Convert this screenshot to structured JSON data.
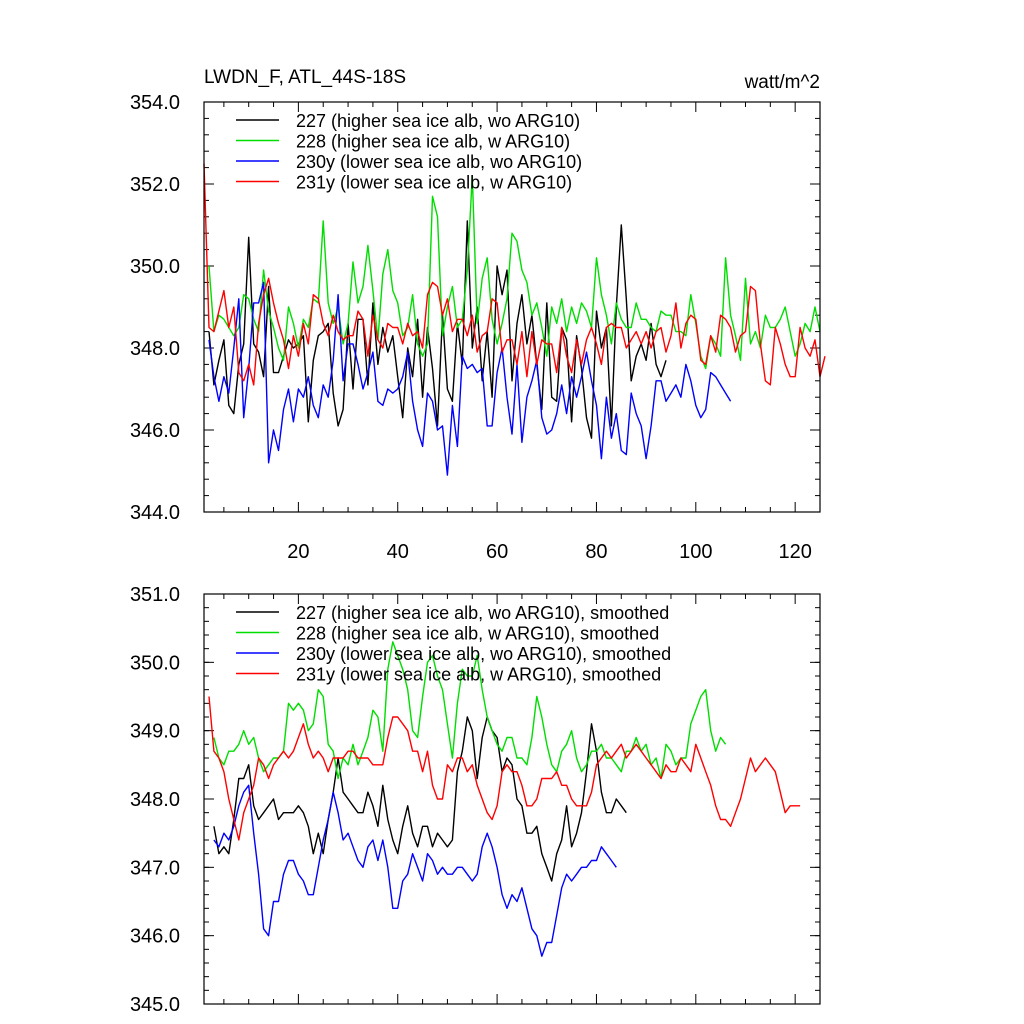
{
  "chart_data": [
    {
      "type": "line",
      "title": "LWDN_F, ATL_44S-18S",
      "units": "watt/m^2",
      "xlim": [
        1,
        125
      ],
      "ylim": [
        344,
        354
      ],
      "yticks": [
        "344.0",
        "346.0",
        "348.0",
        "350.0",
        "352.0",
        "354.0"
      ],
      "xticks": [
        "20",
        "40",
        "60",
        "80",
        "100",
        "120"
      ],
      "series": [
        {
          "name": "227 (higher sea ice alb, wo ARG10)",
          "color": "#000000",
          "x_start": 2,
          "values": [
            348.4,
            347.1,
            347.7,
            348.2,
            346.6,
            346.4,
            347.6,
            348.1,
            350.7,
            348.1,
            347.9,
            347.3,
            349.5,
            347.4,
            347.4,
            347.8,
            348.2,
            348.0,
            348.1,
            348.3,
            346.2,
            347.7,
            348.3,
            348.4,
            348.6,
            346.9,
            346.1,
            346.5,
            348.6,
            347.0,
            348.7,
            348.7,
            347.1,
            349.1,
            347.6,
            348.5,
            347.9,
            348.3,
            347.3,
            346.3,
            348.0,
            347.3,
            348.7,
            346.8,
            348.5,
            347.5,
            346.1,
            348.8,
            347.0,
            346.7,
            348.6,
            347.6,
            351.1,
            348.0,
            349.0,
            347.2,
            348.4,
            346.8,
            350.0,
            349.3,
            349.9,
            347.2,
            348.6,
            349.3,
            348.1,
            348.8,
            347.6,
            346.5,
            349.1,
            346.8,
            346.7,
            348.5,
            348.2,
            346.2,
            348.3,
            347.5,
            346.3,
            345.8,
            348.9,
            348.0,
            348.5,
            346.1,
            349.0,
            351.0,
            349.2,
            347.2,
            347.8,
            348.1,
            347.7,
            348.6,
            347.6,
            347.3,
            347.7
          ]
        },
        {
          "name": "228 (higher sea ice alb, w ARG10)",
          "color": "#00dd00",
          "x_start": 2,
          "values": [
            350.0,
            348.4,
            348.8,
            348.7,
            348.5,
            348.3,
            348.5,
            349.3,
            349.2,
            348.7,
            348.4,
            349.9,
            348.9,
            348.5,
            348.0,
            347.7,
            349.0,
            348.6,
            348.0,
            348.7,
            348.5,
            349.2,
            349.1,
            351.1,
            349.1,
            348.6,
            349.0,
            348.1,
            348.6,
            350.1,
            349.1,
            349.5,
            350.5,
            349.4,
            348.2,
            349.8,
            350.4,
            349.4,
            349.1,
            348.3,
            348.5,
            349.3,
            348.1,
            347.8,
            348.1,
            351.7,
            351.2,
            348.3,
            349.0,
            349.5,
            348.5,
            348.7,
            349.9,
            352.2,
            348.6,
            349.7,
            350.2,
            348.7,
            348.1,
            348.6,
            349.2,
            350.8,
            350.6,
            349.9,
            349.6,
            348.8,
            349.1,
            348.5,
            347.8,
            349.0,
            348.6,
            349.2,
            348.4,
            349.0,
            348.6,
            349.1,
            348.9,
            348.5,
            350.2,
            349.3,
            348.8,
            348.1,
            349.1,
            348.7,
            348.5,
            348.5,
            349.1,
            348.7,
            348.7,
            348.5,
            348.4,
            348.9,
            348.8,
            348.8,
            348.4,
            348.4,
            348.3,
            349.3,
            348.6,
            347.8,
            347.5,
            348.3,
            348.1,
            347.8,
            350.2,
            348.8,
            348.3,
            347.7,
            349.7,
            348.1,
            348.4,
            348.0,
            348.8,
            348.5,
            348.5,
            348.7,
            349.0,
            348.4,
            347.8,
            348.1,
            348.6,
            348.4,
            349.0,
            348.4
          ]
        },
        {
          "name": "230y (lower sea ice alb, wo ARG10)",
          "color": "#0000ff",
          "x_start": 2,
          "values": [
            348.2,
            347.3,
            346.7,
            347.3,
            346.9,
            348.0,
            349.2,
            346.3,
            347.5,
            349.1,
            349.1,
            349.6,
            345.2,
            346.0,
            345.5,
            346.5,
            347.0,
            346.2,
            347.0,
            346.8,
            347.3,
            346.6,
            346.3,
            347.1,
            346.8,
            347.7,
            349.3,
            347.2,
            348.1,
            348.1,
            347.6,
            347.0,
            347.4,
            347.9,
            346.7,
            346.6,
            347.0,
            346.9,
            347.0,
            347.3,
            347.9,
            346.7,
            346.0,
            345.6,
            346.9,
            346.7,
            346.0,
            346.1,
            344.9,
            346.6,
            345.6,
            347.8,
            347.5,
            347.6,
            347.4,
            347.5,
            346.1,
            346.1,
            347.4,
            348.0,
            346.8,
            345.9,
            347.6,
            345.7,
            346.8,
            347.2,
            347.7,
            346.3,
            345.9,
            346.0,
            346.4,
            347.1,
            346.4,
            347.3,
            346.8,
            347.3,
            347.9,
            347.2,
            346.6,
            345.3,
            346.8,
            345.8,
            346.4,
            345.5,
            345.4,
            346.9,
            346.4,
            346.1,
            345.3,
            346.1,
            347.2,
            347.2,
            346.7,
            346.9,
            347.1,
            346.8,
            347.6,
            347.2,
            346.6,
            346.3,
            346.5,
            347.4,
            347.3,
            347.1,
            346.9,
            346.7
          ]
        },
        {
          "name": "231y (lower sea ice alb, w ARG10)",
          "color": "#ff0000",
          "x_start": 1,
          "values": [
            352.5,
            348.5,
            348.4,
            348.9,
            349.4,
            348.5,
            349.0,
            347.4,
            347.2,
            347.6,
            347.1,
            348.6,
            349.3,
            349.7,
            349.1,
            348.6,
            348.2,
            347.5,
            348.3,
            347.8,
            348.6,
            348.1,
            349.3,
            349.2,
            348.6,
            348.3,
            348.8,
            348.4,
            348.2,
            348.3,
            348.3,
            348.9,
            348.7,
            347.8,
            348.8,
            348.2,
            348.0,
            348.6,
            348.5,
            348.5,
            348.1,
            348.6,
            348.3,
            348.4,
            348.0,
            349.3,
            349.6,
            349.5,
            348.8,
            349.2,
            348.4,
            348.7,
            348.7,
            348.3,
            348.8,
            347.9,
            348.3,
            348.4,
            349.2,
            349.1,
            347.9,
            348.2,
            348.2,
            347.6,
            348.4,
            347.3,
            348.4,
            347.6,
            348.2,
            348.1,
            348.1,
            347.4,
            348.5,
            347.8,
            347.4,
            348.2,
            347.6,
            348.2,
            348.5,
            348.1,
            347.6,
            348.5,
            348.6,
            348.5,
            348.5,
            348.0,
            348.2,
            348.4,
            348.1,
            348.4,
            348.0,
            348.4,
            348.5,
            347.9,
            348.3,
            349.1,
            348.0,
            348.6,
            348.8,
            348.7,
            347.7,
            347.6,
            348.3,
            347.9,
            348.8,
            348.7,
            348.5,
            347.9,
            348.3,
            348.4,
            349.5,
            349.4,
            348.1,
            347.2,
            347.1,
            348.5,
            348.1,
            347.6,
            347.3,
            347.3,
            348.5,
            348.0,
            347.8,
            348.2,
            347.3,
            347.8
          ]
        }
      ]
    },
    {
      "type": "line",
      "ylim": [
        345,
        351
      ],
      "xlim": [
        1,
        125
      ],
      "yticks": [
        "345.0",
        "346.0",
        "347.0",
        "348.0",
        "349.0",
        "350.0",
        "351.0"
      ],
      "series": [
        {
          "name": "227 (higher sea ice alb, wo ARG10), smoothed",
          "color": "#000000",
          "x_start": 3,
          "values": [
            347.6,
            347.2,
            347.3,
            347.2,
            347.7,
            348.3,
            348.3,
            348.5,
            347.9,
            347.7,
            347.8,
            347.9,
            348.0,
            347.7,
            347.8,
            347.8,
            347.8,
            347.9,
            347.8,
            347.6,
            347.2,
            347.5,
            347.2,
            347.7,
            348.1,
            348.6,
            348.1,
            348.0,
            347.9,
            347.8,
            347.8,
            348.1,
            347.9,
            347.6,
            348.2,
            347.7,
            347.4,
            347.2,
            347.6,
            347.9,
            347.5,
            347.3,
            347.6,
            347.6,
            347.3,
            347.5,
            347.4,
            347.3,
            347.4,
            348.4,
            348.7,
            349.2,
            349.0,
            348.3,
            348.9,
            349.2,
            349.0,
            348.9,
            348.4,
            348.6,
            348.5,
            348.0,
            347.9,
            347.5,
            347.5,
            347.6,
            347.2,
            347.0,
            346.8,
            347.2,
            347.4,
            347.9,
            347.3,
            347.5,
            347.8,
            348.4,
            349.1,
            348.7,
            348.1,
            347.8,
            347.8,
            348.0,
            347.9,
            347.8
          ]
        },
        {
          "name": "228 (higher sea ice alb, w ARG10), smoothed",
          "color": "#00dd00",
          "x_start": 3,
          "values": [
            348.9,
            348.6,
            348.5,
            348.7,
            348.7,
            348.8,
            349.0,
            348.8,
            348.9,
            348.6,
            348.4,
            348.5,
            348.6,
            348.6,
            348.7,
            349.4,
            349.3,
            349.4,
            349.3,
            349.0,
            349.1,
            349.6,
            349.5,
            348.8,
            348.7,
            348.3,
            348.6,
            348.5,
            348.8,
            348.5,
            348.7,
            348.9,
            349.3,
            349.2,
            348.7,
            349.9,
            350.3,
            350.1,
            349.9,
            349.6,
            349.0,
            348.9,
            349.5,
            350.0,
            350.1,
            349.8,
            349.6,
            349.1,
            348.6,
            349.4,
            349.9,
            349.8,
            349.8,
            350.1,
            349.6,
            349.2,
            349.0,
            348.8,
            348.7,
            348.9,
            348.9,
            348.6,
            348.6,
            348.5,
            348.9,
            349.5,
            349.2,
            348.8,
            348.5,
            348.4,
            348.7,
            348.8,
            349.0,
            348.6,
            348.4,
            348.5,
            348.7,
            348.7,
            348.8,
            348.6,
            348.6,
            348.5,
            348.4,
            348.7,
            348.7,
            348.9,
            348.7,
            348.8,
            348.5,
            348.6,
            348.3,
            348.8,
            348.7,
            348.5,
            348.6,
            348.6,
            349.1,
            349.3,
            349.5,
            349.6,
            349.0,
            348.7,
            348.9,
            348.8
          ]
        },
        {
          "name": "230y (lower sea ice alb, wo ARG10), smoothed",
          "color": "#0000ff",
          "x_start": 3,
          "values": [
            347.4,
            347.3,
            347.5,
            347.4,
            347.6,
            347.9,
            348.1,
            348.2,
            347.5,
            346.9,
            346.1,
            346.0,
            346.5,
            346.5,
            346.9,
            347.1,
            347.1,
            346.9,
            346.8,
            346.6,
            346.6,
            347.0,
            347.4,
            347.7,
            348.1,
            347.8,
            347.4,
            347.5,
            347.3,
            347.1,
            347.0,
            347.3,
            347.4,
            347.1,
            347.4,
            347.0,
            346.4,
            346.4,
            346.8,
            346.9,
            347.2,
            347.0,
            346.8,
            347.2,
            347.1,
            346.9,
            347.0,
            346.9,
            346.9,
            347.0,
            347.0,
            346.9,
            346.8,
            346.9,
            347.3,
            347.5,
            347.3,
            347.0,
            346.6,
            346.4,
            346.6,
            346.5,
            346.7,
            346.4,
            346.1,
            346.0,
            345.7,
            345.9,
            345.9,
            346.3,
            346.7,
            346.9,
            346.8,
            346.9,
            347.0,
            347.0,
            347.1,
            347.1,
            347.3,
            347.2,
            347.1,
            347.0
          ]
        },
        {
          "name": "231y (lower sea ice alb, w ARG10), smoothed",
          "color": "#ff0000",
          "x_start": 2,
          "values": [
            349.5,
            348.7,
            348.6,
            348.4,
            348.0,
            347.7,
            347.4,
            347.8,
            348.0,
            348.2,
            348.6,
            348.5,
            348.3,
            348.5,
            348.6,
            348.7,
            348.6,
            348.7,
            348.9,
            349.1,
            348.8,
            348.6,
            348.7,
            348.6,
            348.4,
            348.6,
            348.6,
            348.6,
            348.7,
            348.7,
            348.6,
            348.6,
            348.6,
            348.5,
            348.5,
            348.5,
            348.9,
            349.2,
            349.2,
            349.1,
            349.0,
            348.7,
            348.7,
            348.4,
            348.7,
            348.2,
            348.0,
            348.0,
            348.5,
            348.4,
            348.6,
            348.6,
            348.4,
            348.5,
            348.2,
            348.0,
            347.8,
            347.7,
            347.9,
            348.4,
            348.5,
            348.4,
            348.4,
            348.2,
            347.9,
            347.9,
            348.0,
            348.3,
            348.3,
            348.3,
            348.4,
            348.2,
            348.2,
            348.0,
            347.9,
            347.9,
            347.9,
            348.1,
            348.5,
            348.6,
            348.7,
            348.6,
            348.7,
            348.8,
            348.6,
            348.7,
            348.8,
            348.7,
            348.6,
            348.5,
            348.4,
            348.3,
            348.5,
            348.4,
            348.4,
            348.6,
            348.5,
            348.4,
            348.8,
            348.6,
            348.4,
            348.2,
            347.9,
            347.7,
            347.7,
            347.6,
            347.8,
            348.0,
            348.3,
            348.6,
            348.4,
            348.5,
            348.6,
            348.5,
            348.4,
            348.1,
            347.8,
            347.9,
            347.9,
            347.9
          ]
        }
      ]
    }
  ]
}
